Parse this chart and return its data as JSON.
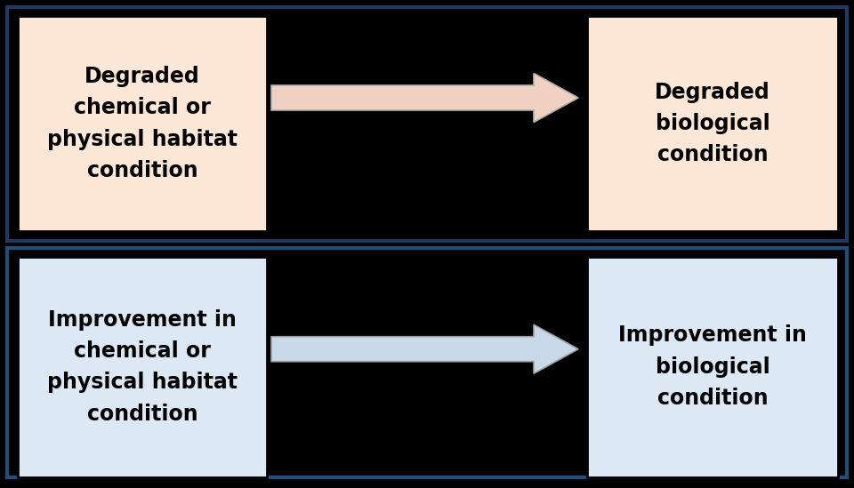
{
  "background_color": "#000000",
  "panel_bg": "#000000",
  "top_box_color": "#fde8d8",
  "bottom_box_color": "#dce9f5",
  "top_panel_border_color": "#1f3864",
  "bottom_panel_border_color": "#1f4e79",
  "box_edge_color": "#000000",
  "top_arrow_face_color": "#f0d0c0",
  "top_arrow_edge_color": "#b0b0b0",
  "bottom_arrow_face_color": "#c8d8e8",
  "bottom_arrow_edge_color": "#a0a0a0",
  "text_color": "#000000",
  "top_left_text": "Degraded\nchemical or\nphysical habitat\ncondition",
  "top_right_text": "Degraded\nbiological\ncondition",
  "bottom_left_text": "Improvement in\nchemical or\nphysical habitat\ncondition",
  "bottom_right_text": "Improvement in\nbiological\ncondition",
  "font_size": 17,
  "font_weight": "bold",
  "fig_width": 9.6,
  "fig_height": 5.49,
  "dpi": 100
}
